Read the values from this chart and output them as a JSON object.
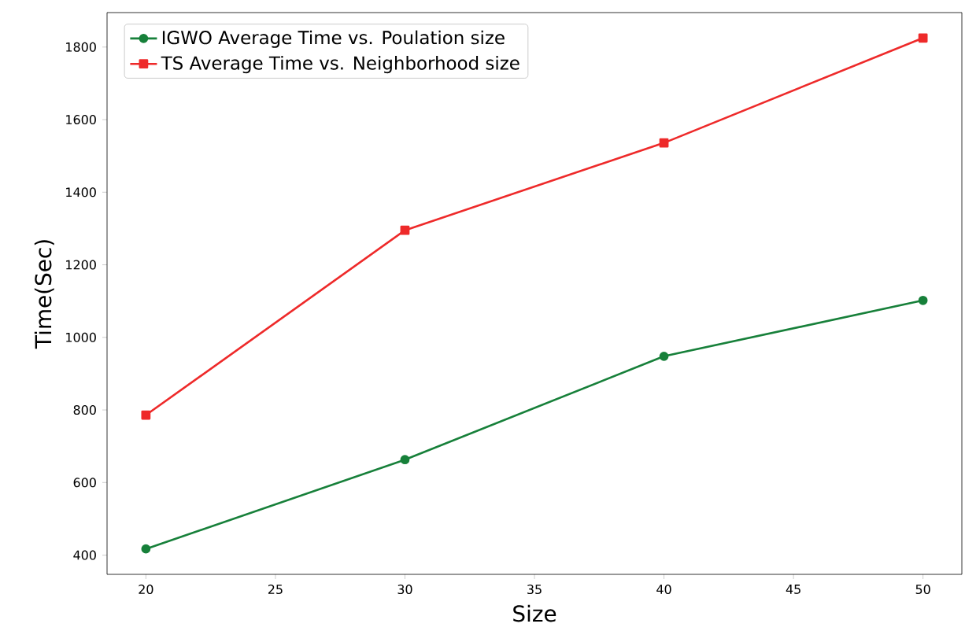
{
  "chart_data": {
    "type": "line",
    "xlabel": "Size",
    "ylabel": "Time(Sec)",
    "x": [
      20,
      30,
      40,
      50
    ],
    "series": [
      {
        "name": "IGWO Average Time vs. Poulation size",
        "color": "#17803a",
        "marker": "circle",
        "values": [
          417,
          663,
          948,
          1102
        ]
      },
      {
        "name": "TS Average Time vs. Neighborhood size",
        "color": "#ee2a2a",
        "marker": "square",
        "values": [
          786,
          1295,
          1536,
          1825
        ]
      }
    ],
    "xlim": [
      18.5,
      51.5
    ],
    "ylim": [
      347,
      1895
    ],
    "xticks": [
      20,
      25,
      30,
      35,
      40,
      45,
      50
    ],
    "yticks": [
      400,
      600,
      800,
      1000,
      1200,
      1400,
      1600,
      1800
    ],
    "legend": "top left",
    "grid": false,
    "line_style": "solid"
  }
}
